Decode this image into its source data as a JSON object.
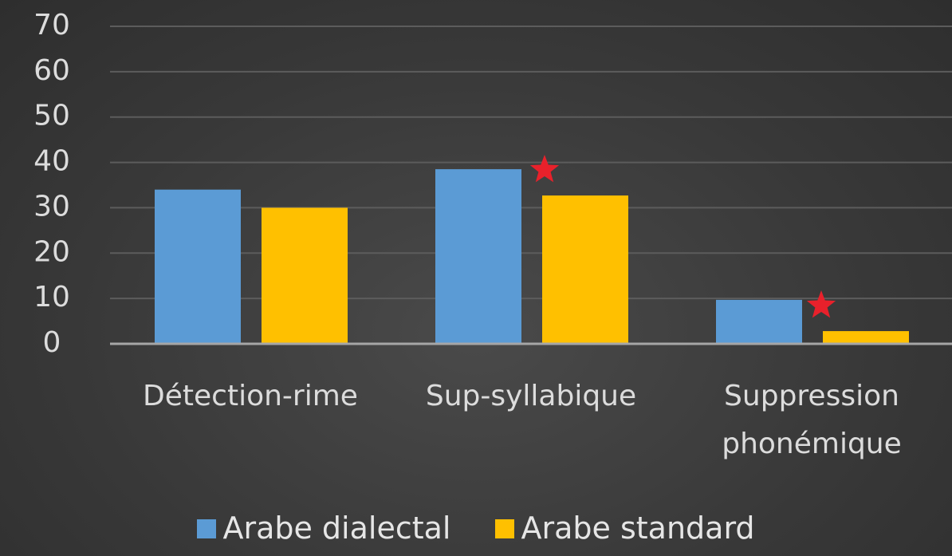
{
  "chart_data": {
    "type": "bar",
    "categories": [
      "Détection-rime",
      "Sup-syllabique",
      "Suppression phonémique"
    ],
    "series": [
      {
        "name": "Arabe dialectal",
        "color": "#5b9bd5",
        "values": [
          34,
          38.5,
          9.7
        ]
      },
      {
        "name": "Arabe standard",
        "color": "#ffc000",
        "values": [
          30,
          32.7,
          2.8
        ]
      }
    ],
    "ylim": [
      0,
      70
    ],
    "yticks": [
      0,
      10,
      20,
      30,
      40,
      50,
      60,
      70
    ],
    "grid": true,
    "legend": "bottom"
  }
}
